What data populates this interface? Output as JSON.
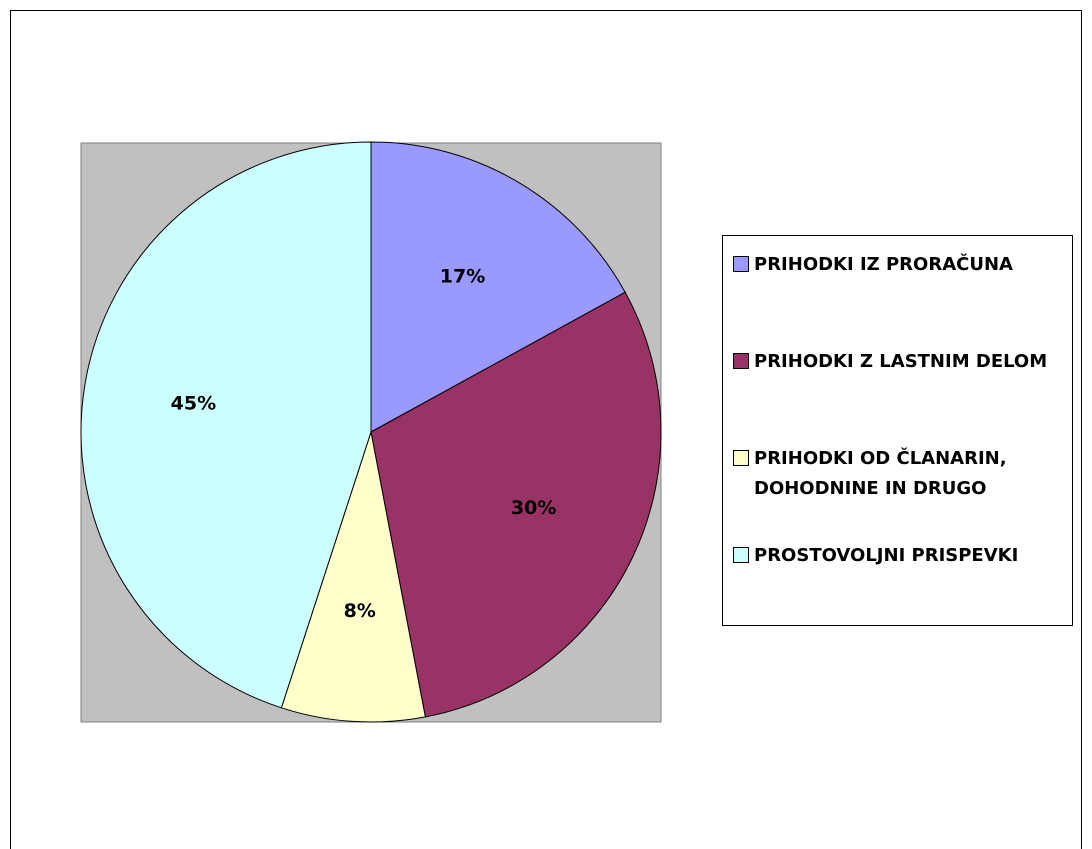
{
  "chart_data": {
    "type": "pie",
    "categories": [
      "PRIHODKI IZ PRORAČUNA",
      "PRIHODKI Z LASTNIM DELOM",
      "PRIHODKI OD ČLANARIN, DOHODNINE IN DRUGO",
      "PROSTOVOLJNI PRISPEVKI"
    ],
    "values": [
      17,
      30,
      8,
      45
    ],
    "value_labels": [
      "17%",
      "30%",
      "8%",
      "45%"
    ],
    "colors": [
      "#9999ff",
      "#993366",
      "#ffffcc",
      "#ccffff"
    ],
    "legend": "right"
  }
}
